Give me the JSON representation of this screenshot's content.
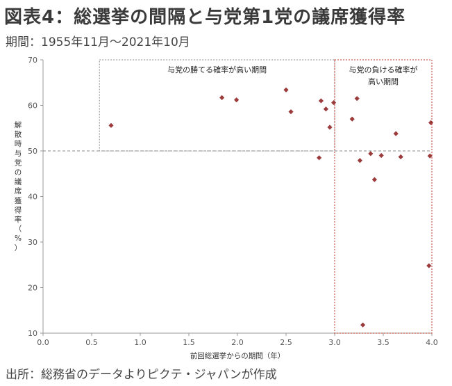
{
  "title": "図表4：総選挙の間隔と与党第1党の議席獲得率",
  "subtitle": "期間：1955年11月～2021年10月",
  "source": "出所：総務省のデータよりピクテ・ジャパンが作成",
  "chart_data": {
    "type": "scatter",
    "xlabel": "前回総選挙からの期間（年）",
    "ylabel": "解散時与党の議席獲得率（%）",
    "xlim": [
      0,
      4.0
    ],
    "ylim": [
      10,
      70
    ],
    "xticks": [
      "0.0",
      "0.5",
      "1.0",
      "1.5",
      "2.0",
      "2.5",
      "3.0",
      "3.5",
      "4.0"
    ],
    "yticks": [
      "10",
      "20",
      "30",
      "40",
      "50",
      "60",
      "70"
    ],
    "grid": false,
    "marker_color": "#9b3b3b",
    "points": [
      {
        "x": 0.7,
        "y": 55.6
      },
      {
        "x": 1.84,
        "y": 61.7
      },
      {
        "x": 1.99,
        "y": 61.2
      },
      {
        "x": 2.5,
        "y": 63.4
      },
      {
        "x": 2.55,
        "y": 58.6
      },
      {
        "x": 2.84,
        "y": 48.5
      },
      {
        "x": 2.86,
        "y": 61.0
      },
      {
        "x": 2.91,
        "y": 59.2
      },
      {
        "x": 2.95,
        "y": 55.2
      },
      {
        "x": 2.99,
        "y": 60.6
      },
      {
        "x": 3.18,
        "y": 57.0
      },
      {
        "x": 3.23,
        "y": 61.5
      },
      {
        "x": 3.26,
        "y": 47.9
      },
      {
        "x": 3.29,
        "y": 11.8
      },
      {
        "x": 3.37,
        "y": 49.4
      },
      {
        "x": 3.41,
        "y": 43.7
      },
      {
        "x": 3.48,
        "y": 49.0
      },
      {
        "x": 3.63,
        "y": 53.8
      },
      {
        "x": 3.68,
        "y": 48.7
      },
      {
        "x": 3.97,
        "y": 24.8
      },
      {
        "x": 3.98,
        "y": 48.9
      },
      {
        "x": 3.99,
        "y": 56.2
      }
    ],
    "reference_line": {
      "y": 50,
      "color": "#888888"
    },
    "regions": [
      {
        "label": "与党の勝てる確率が高い期間",
        "x": [
          0.58,
          3.0
        ],
        "y": [
          50,
          70
        ],
        "color": "#888888"
      },
      {
        "label": "与党の負ける確率が高い期間",
        "x": [
          3.0,
          4.0
        ],
        "y": [
          10,
          70
        ],
        "color": "#c0392b"
      }
    ]
  }
}
